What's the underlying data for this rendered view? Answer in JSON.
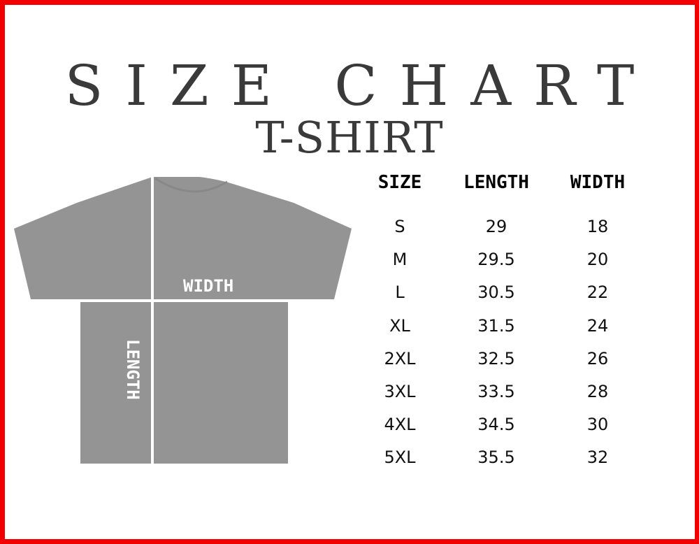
{
  "title": "SIZE CHART",
  "subtitle": "T-SHIRT",
  "shirt": {
    "width_label": "WIDTH",
    "length_label": "LENGTH",
    "color": "#949494"
  },
  "border_color": "#f20000",
  "table": {
    "headers": [
      "SIZE",
      "LENGTH",
      "WIDTH"
    ],
    "rows": [
      [
        "S",
        "29",
        "18"
      ],
      [
        "M",
        "29.5",
        "20"
      ],
      [
        "L",
        "30.5",
        "22"
      ],
      [
        "XL",
        "31.5",
        "24"
      ],
      [
        "2XL",
        "32.5",
        "26"
      ],
      [
        "3XL",
        "33.5",
        "28"
      ],
      [
        "4XL",
        "34.5",
        "30"
      ],
      [
        "5XL",
        "35.5",
        "32"
      ]
    ]
  }
}
